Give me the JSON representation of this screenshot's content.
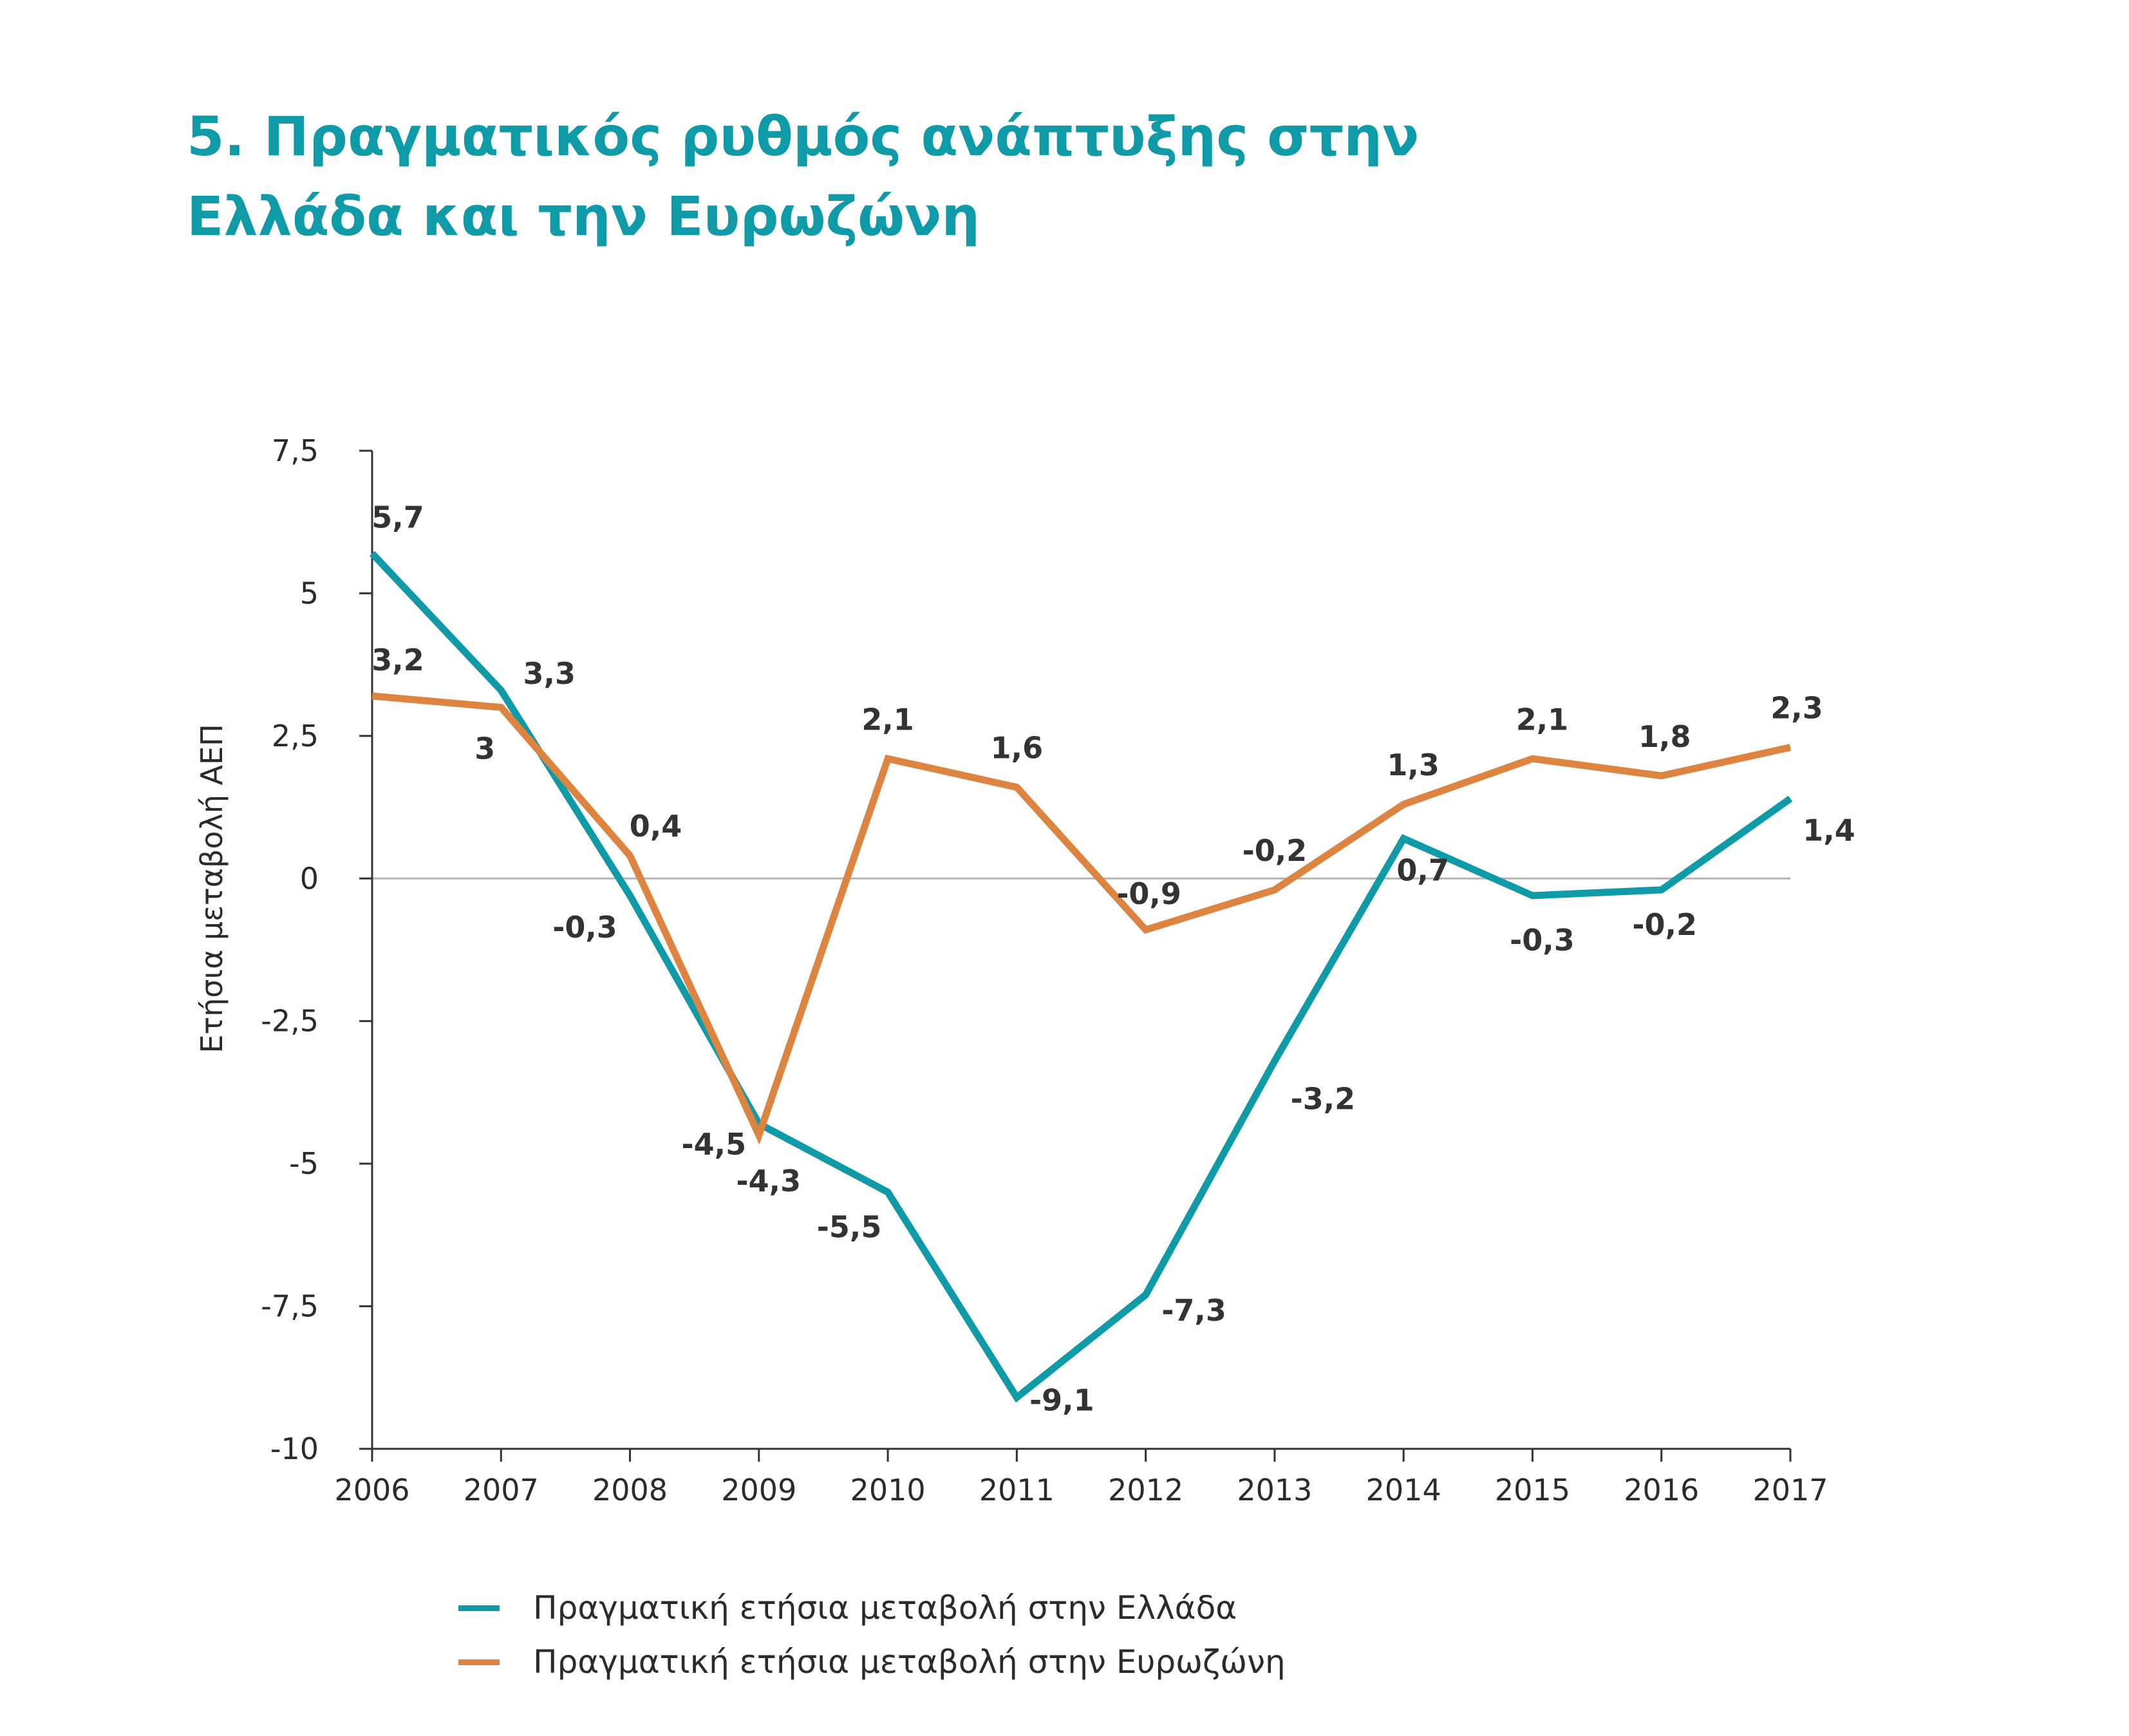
{
  "title": {
    "line1": "5. Πραγματικός ρυθμός ανάπτυξης στην",
    "line2": "Ελλάδα και την Ευρωζώνη"
  },
  "chart_data": {
    "type": "line",
    "title": "5. Πραγματικός ρυθμός ανάπτυξης στην Ελλάδα και την Ευρωζώνη",
    "xlabel": "",
    "ylabel": "Ετήσια μεταβολή ΑΕΠ",
    "categories": [
      "2006",
      "2007",
      "2008",
      "2009",
      "2010",
      "2011",
      "2012",
      "2013",
      "2014",
      "2015",
      "2016",
      "2017"
    ],
    "ylim": [
      -10,
      7.5
    ],
    "yticks": [
      7.5,
      5,
      2.5,
      0,
      -2.5,
      -5,
      -7.5,
      -10
    ],
    "ytick_labels": [
      "7,5",
      "5",
      "2,5",
      "0",
      "-2,5",
      "-5",
      "-7,5",
      "-10"
    ],
    "grid": false,
    "zero_line": true,
    "legend_position": "bottom",
    "series": [
      {
        "name": "Πραγματική ετήσια μεταβολή στην Ελλάδα",
        "color": "#0e9aa7",
        "values": [
          5.7,
          3.3,
          -0.3,
          -4.3,
          -5.5,
          -9.1,
          -7.3,
          -3.2,
          0.7,
          -0.3,
          -0.2,
          1.4
        ],
        "labels": [
          "5,7",
          "3,3",
          "-0,3",
          "-4,3",
          "-5,5",
          "-9,1",
          "-7,3",
          "-3,2",
          "0,7",
          "-0,3",
          "-0,2",
          "1,4"
        ]
      },
      {
        "name": "Πραγματική ετήσια μεταβολή στην Ευρωζώνη",
        "color": "#dd8540",
        "values": [
          3.2,
          3.0,
          0.4,
          -4.5,
          2.1,
          1.6,
          -0.9,
          -0.2,
          1.3,
          2.1,
          1.8,
          2.3
        ],
        "labels": [
          "3,2",
          "3",
          "0,4",
          "-4,5",
          "2,1",
          "1,6",
          "-0,9",
          "-0,2",
          "1,3",
          "2,1",
          "1,8",
          "2,3"
        ]
      }
    ]
  }
}
